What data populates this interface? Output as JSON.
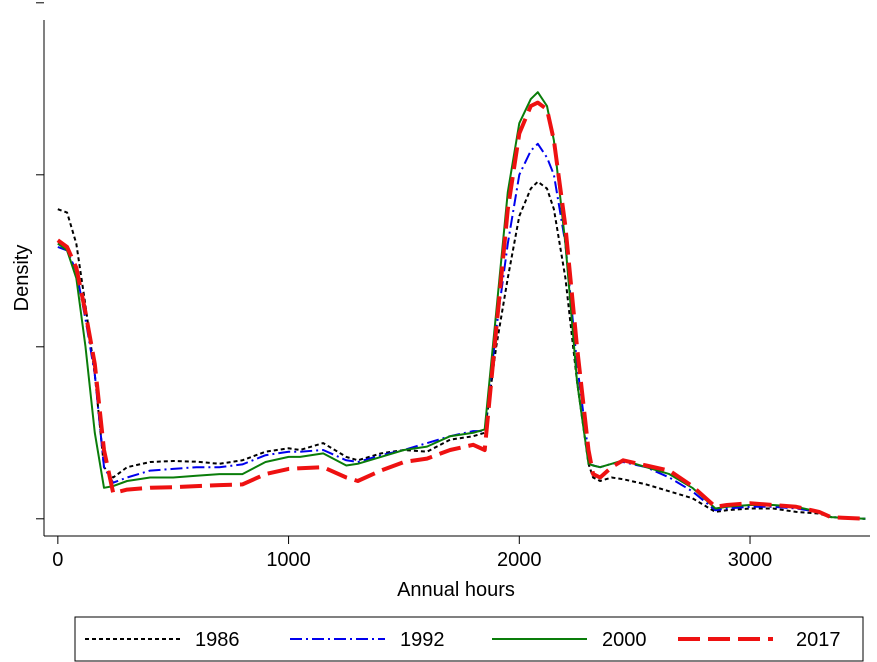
{
  "chart_data": {
    "type": "line",
    "title": "",
    "xlabel": "Annual hours",
    "ylabel": "Density",
    "xlim": [
      -60,
      3520
    ],
    "ylim": [
      -0.05,
      1.45
    ],
    "x_ticks": [
      0,
      1000,
      2000,
      3000
    ],
    "y_ticks": [
      0,
      0.5,
      1.0,
      1.5
    ],
    "y_tick_labels_shown": false,
    "grid": false,
    "legend": {
      "placement": "bottom",
      "columns": 4
    },
    "series": [
      {
        "name": "1986",
        "color": "#000000",
        "dash": "dotted",
        "x": [
          0,
          40,
          80,
          120,
          160,
          200,
          240,
          300,
          400,
          500,
          600,
          700,
          800,
          900,
          1000,
          1050,
          1150,
          1250,
          1300,
          1400,
          1500,
          1600,
          1700,
          1800,
          1850,
          1900,
          1950,
          2000,
          2050,
          2080,
          2120,
          2150,
          2200,
          2250,
          2300,
          2320,
          2350,
          2400,
          2450,
          2550,
          2650,
          2750,
          2850,
          2900,
          3000,
          3100,
          3200,
          3300,
          3350,
          3400,
          3500
        ],
        "y": [
          0.9,
          0.89,
          0.8,
          0.62,
          0.42,
          0.15,
          0.12,
          0.15,
          0.165,
          0.168,
          0.166,
          0.16,
          0.17,
          0.195,
          0.205,
          0.2,
          0.22,
          0.18,
          0.17,
          0.19,
          0.2,
          0.195,
          0.23,
          0.24,
          0.25,
          0.5,
          0.7,
          0.88,
          0.96,
          0.98,
          0.96,
          0.9,
          0.7,
          0.4,
          0.16,
          0.12,
          0.11,
          0.12,
          0.115,
          0.1,
          0.08,
          0.06,
          0.02,
          0.025,
          0.03,
          0.03,
          0.02,
          0.015,
          0.005,
          0.003,
          0.0
        ]
      },
      {
        "name": "1992",
        "color": "#0000ee",
        "dash": "dashdot",
        "x": [
          0,
          40,
          80,
          120,
          160,
          200,
          240,
          300,
          400,
          500,
          600,
          700,
          800,
          900,
          1000,
          1050,
          1150,
          1250,
          1300,
          1400,
          1500,
          1600,
          1700,
          1800,
          1850,
          1900,
          1950,
          2000,
          2050,
          2080,
          2120,
          2150,
          2200,
          2250,
          2300,
          2320,
          2350,
          2400,
          2450,
          2550,
          2650,
          2750,
          2850,
          2900,
          3000,
          3100,
          3200,
          3300,
          3350,
          3400,
          3500
        ],
        "y": [
          0.79,
          0.78,
          0.72,
          0.58,
          0.42,
          0.15,
          0.105,
          0.12,
          0.14,
          0.145,
          0.15,
          0.15,
          0.158,
          0.185,
          0.195,
          0.195,
          0.2,
          0.17,
          0.165,
          0.185,
          0.2,
          0.22,
          0.24,
          0.255,
          0.255,
          0.55,
          0.8,
          1.0,
          1.07,
          1.09,
          1.05,
          1.0,
          0.8,
          0.45,
          0.19,
          0.155,
          0.15,
          0.16,
          0.165,
          0.15,
          0.12,
          0.08,
          0.025,
          0.03,
          0.035,
          0.035,
          0.03,
          0.02,
          0.005,
          0.003,
          0.0
        ]
      },
      {
        "name": "2000",
        "color": "#0a7d0a",
        "dash": "solid",
        "x": [
          0,
          40,
          80,
          120,
          160,
          200,
          240,
          300,
          400,
          500,
          600,
          700,
          800,
          900,
          1000,
          1050,
          1150,
          1250,
          1300,
          1400,
          1500,
          1600,
          1700,
          1800,
          1850,
          1900,
          1950,
          2000,
          2050,
          2080,
          2120,
          2150,
          2200,
          2250,
          2300,
          2320,
          2350,
          2400,
          2450,
          2550,
          2650,
          2750,
          2850,
          2900,
          3000,
          3100,
          3200,
          3300,
          3350,
          3400,
          3500
        ],
        "y": [
          0.8,
          0.78,
          0.7,
          0.5,
          0.25,
          0.09,
          0.095,
          0.11,
          0.12,
          0.12,
          0.125,
          0.13,
          0.13,
          0.165,
          0.18,
          0.18,
          0.19,
          0.155,
          0.16,
          0.18,
          0.2,
          0.21,
          0.24,
          0.25,
          0.26,
          0.6,
          0.95,
          1.15,
          1.22,
          1.24,
          1.2,
          1.1,
          0.8,
          0.4,
          0.16,
          0.155,
          0.15,
          0.16,
          0.17,
          0.15,
          0.13,
          0.09,
          0.03,
          0.035,
          0.04,
          0.04,
          0.035,
          0.02,
          0.005,
          0.003,
          0.0
        ]
      },
      {
        "name": "2017",
        "color": "#ee1111",
        "dash": "longdash",
        "x": [
          0,
          40,
          80,
          120,
          160,
          200,
          240,
          300,
          400,
          500,
          600,
          700,
          800,
          900,
          1000,
          1050,
          1150,
          1250,
          1300,
          1400,
          1500,
          1600,
          1700,
          1800,
          1850,
          1900,
          1950,
          2000,
          2050,
          2080,
          2120,
          2150,
          2200,
          2250,
          2300,
          2320,
          2350,
          2400,
          2450,
          2550,
          2650,
          2750,
          2850,
          2900,
          3000,
          3100,
          3200,
          3300,
          3350,
          3400,
          3500
        ],
        "y": [
          0.81,
          0.79,
          0.73,
          0.6,
          0.45,
          0.2,
          0.075,
          0.085,
          0.09,
          0.092,
          0.095,
          0.098,
          0.1,
          0.13,
          0.145,
          0.147,
          0.15,
          0.12,
          0.11,
          0.14,
          0.165,
          0.175,
          0.2,
          0.215,
          0.2,
          0.55,
          0.9,
          1.12,
          1.2,
          1.21,
          1.19,
          1.1,
          0.85,
          0.5,
          0.2,
          0.13,
          0.12,
          0.15,
          0.17,
          0.155,
          0.14,
          0.095,
          0.035,
          0.04,
          0.045,
          0.04,
          0.035,
          0.02,
          0.005,
          0.003,
          0.0
        ]
      }
    ]
  }
}
